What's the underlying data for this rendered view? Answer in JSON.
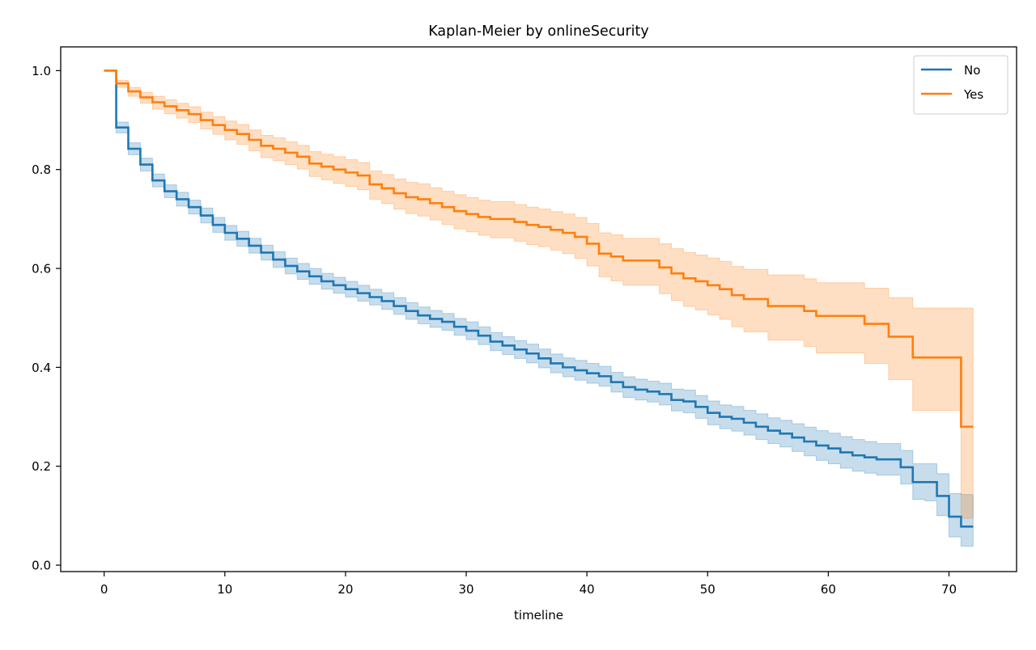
{
  "chart_data": {
    "type": "line",
    "title": "Kaplan-Meier by onlineSecurity",
    "xlabel": "timeline",
    "ylabel": "",
    "xlim": [
      -3.6,
      75.6
    ],
    "ylim": [
      -0.013,
      1.048
    ],
    "xticks": [
      "0",
      "10",
      "20",
      "30",
      "40",
      "50",
      "60",
      "70"
    ],
    "yticks": [
      "0.0",
      "0.2",
      "0.4",
      "0.6",
      "0.8",
      "1.0"
    ],
    "grid": false,
    "legend_position": "top-right",
    "step": "post",
    "series": [
      {
        "name": "No",
        "color": "#1f77b4",
        "x": [
          0,
          1,
          2,
          3,
          4,
          5,
          6,
          7,
          8,
          9,
          10,
          11,
          12,
          13,
          14,
          15,
          16,
          17,
          18,
          19,
          20,
          21,
          22,
          23,
          24,
          25,
          26,
          27,
          28,
          29,
          30,
          31,
          32,
          33,
          34,
          35,
          36,
          37,
          38,
          39,
          40,
          41,
          42,
          43,
          44,
          45,
          46,
          47,
          48,
          49,
          50,
          51,
          52,
          53,
          54,
          55,
          56,
          57,
          58,
          59,
          60,
          61,
          62,
          63,
          64,
          65,
          66,
          67,
          68,
          69,
          70,
          71,
          72
        ],
        "y": [
          1.0,
          0.885,
          0.842,
          0.81,
          0.778,
          0.756,
          0.74,
          0.724,
          0.707,
          0.688,
          0.672,
          0.66,
          0.646,
          0.632,
          0.618,
          0.605,
          0.594,
          0.584,
          0.574,
          0.566,
          0.558,
          0.55,
          0.542,
          0.534,
          0.524,
          0.514,
          0.505,
          0.498,
          0.492,
          0.482,
          0.474,
          0.464,
          0.452,
          0.444,
          0.436,
          0.428,
          0.418,
          0.408,
          0.4,
          0.394,
          0.388,
          0.382,
          0.37,
          0.36,
          0.355,
          0.351,
          0.346,
          0.334,
          0.331,
          0.32,
          0.308,
          0.3,
          0.296,
          0.288,
          0.28,
          0.272,
          0.266,
          0.258,
          0.25,
          0.242,
          0.236,
          0.228,
          0.222,
          0.218,
          0.214,
          0.214,
          0.198,
          0.168,
          0.168,
          0.14,
          0.098,
          0.078,
          0.078
        ],
        "ci_lower": [
          1.0,
          0.874,
          0.83,
          0.797,
          0.765,
          0.743,
          0.726,
          0.71,
          0.692,
          0.673,
          0.657,
          0.645,
          0.631,
          0.617,
          0.602,
          0.589,
          0.578,
          0.568,
          0.558,
          0.55,
          0.542,
          0.534,
          0.526,
          0.517,
          0.507,
          0.497,
          0.488,
          0.481,
          0.475,
          0.465,
          0.456,
          0.446,
          0.434,
          0.426,
          0.418,
          0.409,
          0.399,
          0.389,
          0.381,
          0.374,
          0.368,
          0.362,
          0.35,
          0.339,
          0.334,
          0.33,
          0.324,
          0.312,
          0.308,
          0.297,
          0.284,
          0.276,
          0.271,
          0.263,
          0.254,
          0.246,
          0.239,
          0.23,
          0.221,
          0.212,
          0.205,
          0.196,
          0.19,
          0.186,
          0.182,
          0.182,
          0.164,
          0.133,
          0.13,
          0.1,
          0.057,
          0.038,
          0.038
        ],
        "ci_upper": [
          1.0,
          0.896,
          0.854,
          0.823,
          0.791,
          0.769,
          0.754,
          0.738,
          0.722,
          0.703,
          0.687,
          0.675,
          0.661,
          0.647,
          0.634,
          0.621,
          0.61,
          0.6,
          0.59,
          0.582,
          0.574,
          0.566,
          0.558,
          0.551,
          0.541,
          0.531,
          0.522,
          0.515,
          0.509,
          0.499,
          0.492,
          0.482,
          0.47,
          0.462,
          0.454,
          0.447,
          0.437,
          0.427,
          0.419,
          0.414,
          0.408,
          0.402,
          0.39,
          0.381,
          0.376,
          0.372,
          0.368,
          0.356,
          0.354,
          0.343,
          0.332,
          0.324,
          0.321,
          0.313,
          0.306,
          0.298,
          0.293,
          0.286,
          0.279,
          0.272,
          0.267,
          0.26,
          0.254,
          0.25,
          0.246,
          0.246,
          0.232,
          0.205,
          0.205,
          0.185,
          0.145,
          0.143,
          0.143
        ]
      },
      {
        "name": "Yes",
        "color": "#ff7f0e",
        "x": [
          0,
          1,
          2,
          3,
          4,
          5,
          6,
          7,
          8,
          9,
          10,
          11,
          12,
          13,
          14,
          15,
          16,
          17,
          18,
          19,
          20,
          21,
          22,
          23,
          24,
          25,
          26,
          27,
          28,
          29,
          30,
          31,
          32,
          33,
          34,
          35,
          36,
          37,
          38,
          39,
          40,
          41,
          42,
          43,
          44,
          45,
          46,
          47,
          48,
          49,
          50,
          51,
          52,
          53,
          54,
          55,
          56,
          57,
          58,
          59,
          60,
          61,
          62,
          63,
          64,
          65,
          66,
          67,
          68,
          69,
          70,
          71,
          72
        ],
        "y": [
          1.0,
          0.974,
          0.958,
          0.946,
          0.936,
          0.928,
          0.92,
          0.912,
          0.9,
          0.89,
          0.88,
          0.872,
          0.86,
          0.848,
          0.842,
          0.834,
          0.826,
          0.812,
          0.806,
          0.8,
          0.794,
          0.788,
          0.77,
          0.762,
          0.752,
          0.744,
          0.74,
          0.732,
          0.724,
          0.716,
          0.71,
          0.704,
          0.7,
          0.7,
          0.694,
          0.688,
          0.684,
          0.678,
          0.672,
          0.664,
          0.65,
          0.63,
          0.624,
          0.616,
          0.616,
          0.616,
          0.602,
          0.59,
          0.58,
          0.574,
          0.566,
          0.558,
          0.546,
          0.538,
          0.538,
          0.524,
          0.524,
          0.524,
          0.514,
          0.504,
          0.504,
          0.504,
          0.504,
          0.488,
          0.488,
          0.462,
          0.462,
          0.42,
          0.42,
          0.42,
          0.42,
          0.28,
          0.28
        ],
        "ci_lower": [
          1.0,
          0.966,
          0.948,
          0.934,
          0.922,
          0.913,
          0.904,
          0.895,
          0.882,
          0.871,
          0.86,
          0.851,
          0.838,
          0.824,
          0.818,
          0.81,
          0.801,
          0.786,
          0.779,
          0.772,
          0.766,
          0.759,
          0.74,
          0.731,
          0.72,
          0.711,
          0.706,
          0.698,
          0.689,
          0.68,
          0.674,
          0.667,
          0.662,
          0.662,
          0.655,
          0.648,
          0.644,
          0.637,
          0.63,
          0.62,
          0.605,
          0.583,
          0.575,
          0.566,
          0.566,
          0.566,
          0.549,
          0.535,
          0.523,
          0.516,
          0.506,
          0.497,
          0.482,
          0.472,
          0.472,
          0.455,
          0.455,
          0.455,
          0.442,
          0.429,
          0.429,
          0.429,
          0.429,
          0.408,
          0.408,
          0.375,
          0.375,
          0.313,
          0.313,
          0.313,
          0.313,
          0.095,
          0.095
        ],
        "ci_upper": [
          1.0,
          0.98,
          0.966,
          0.956,
          0.948,
          0.941,
          0.934,
          0.927,
          0.916,
          0.907,
          0.898,
          0.891,
          0.88,
          0.869,
          0.864,
          0.856,
          0.849,
          0.836,
          0.831,
          0.826,
          0.82,
          0.814,
          0.797,
          0.79,
          0.781,
          0.774,
          0.771,
          0.763,
          0.756,
          0.749,
          0.743,
          0.738,
          0.735,
          0.735,
          0.729,
          0.724,
          0.72,
          0.715,
          0.71,
          0.703,
          0.691,
          0.672,
          0.668,
          0.661,
          0.661,
          0.661,
          0.65,
          0.64,
          0.632,
          0.627,
          0.621,
          0.614,
          0.604,
          0.598,
          0.598,
          0.587,
          0.587,
          0.587,
          0.579,
          0.571,
          0.571,
          0.571,
          0.571,
          0.56,
          0.56,
          0.541,
          0.541,
          0.52,
          0.52,
          0.52,
          0.52,
          0.52,
          0.52
        ]
      }
    ]
  }
}
